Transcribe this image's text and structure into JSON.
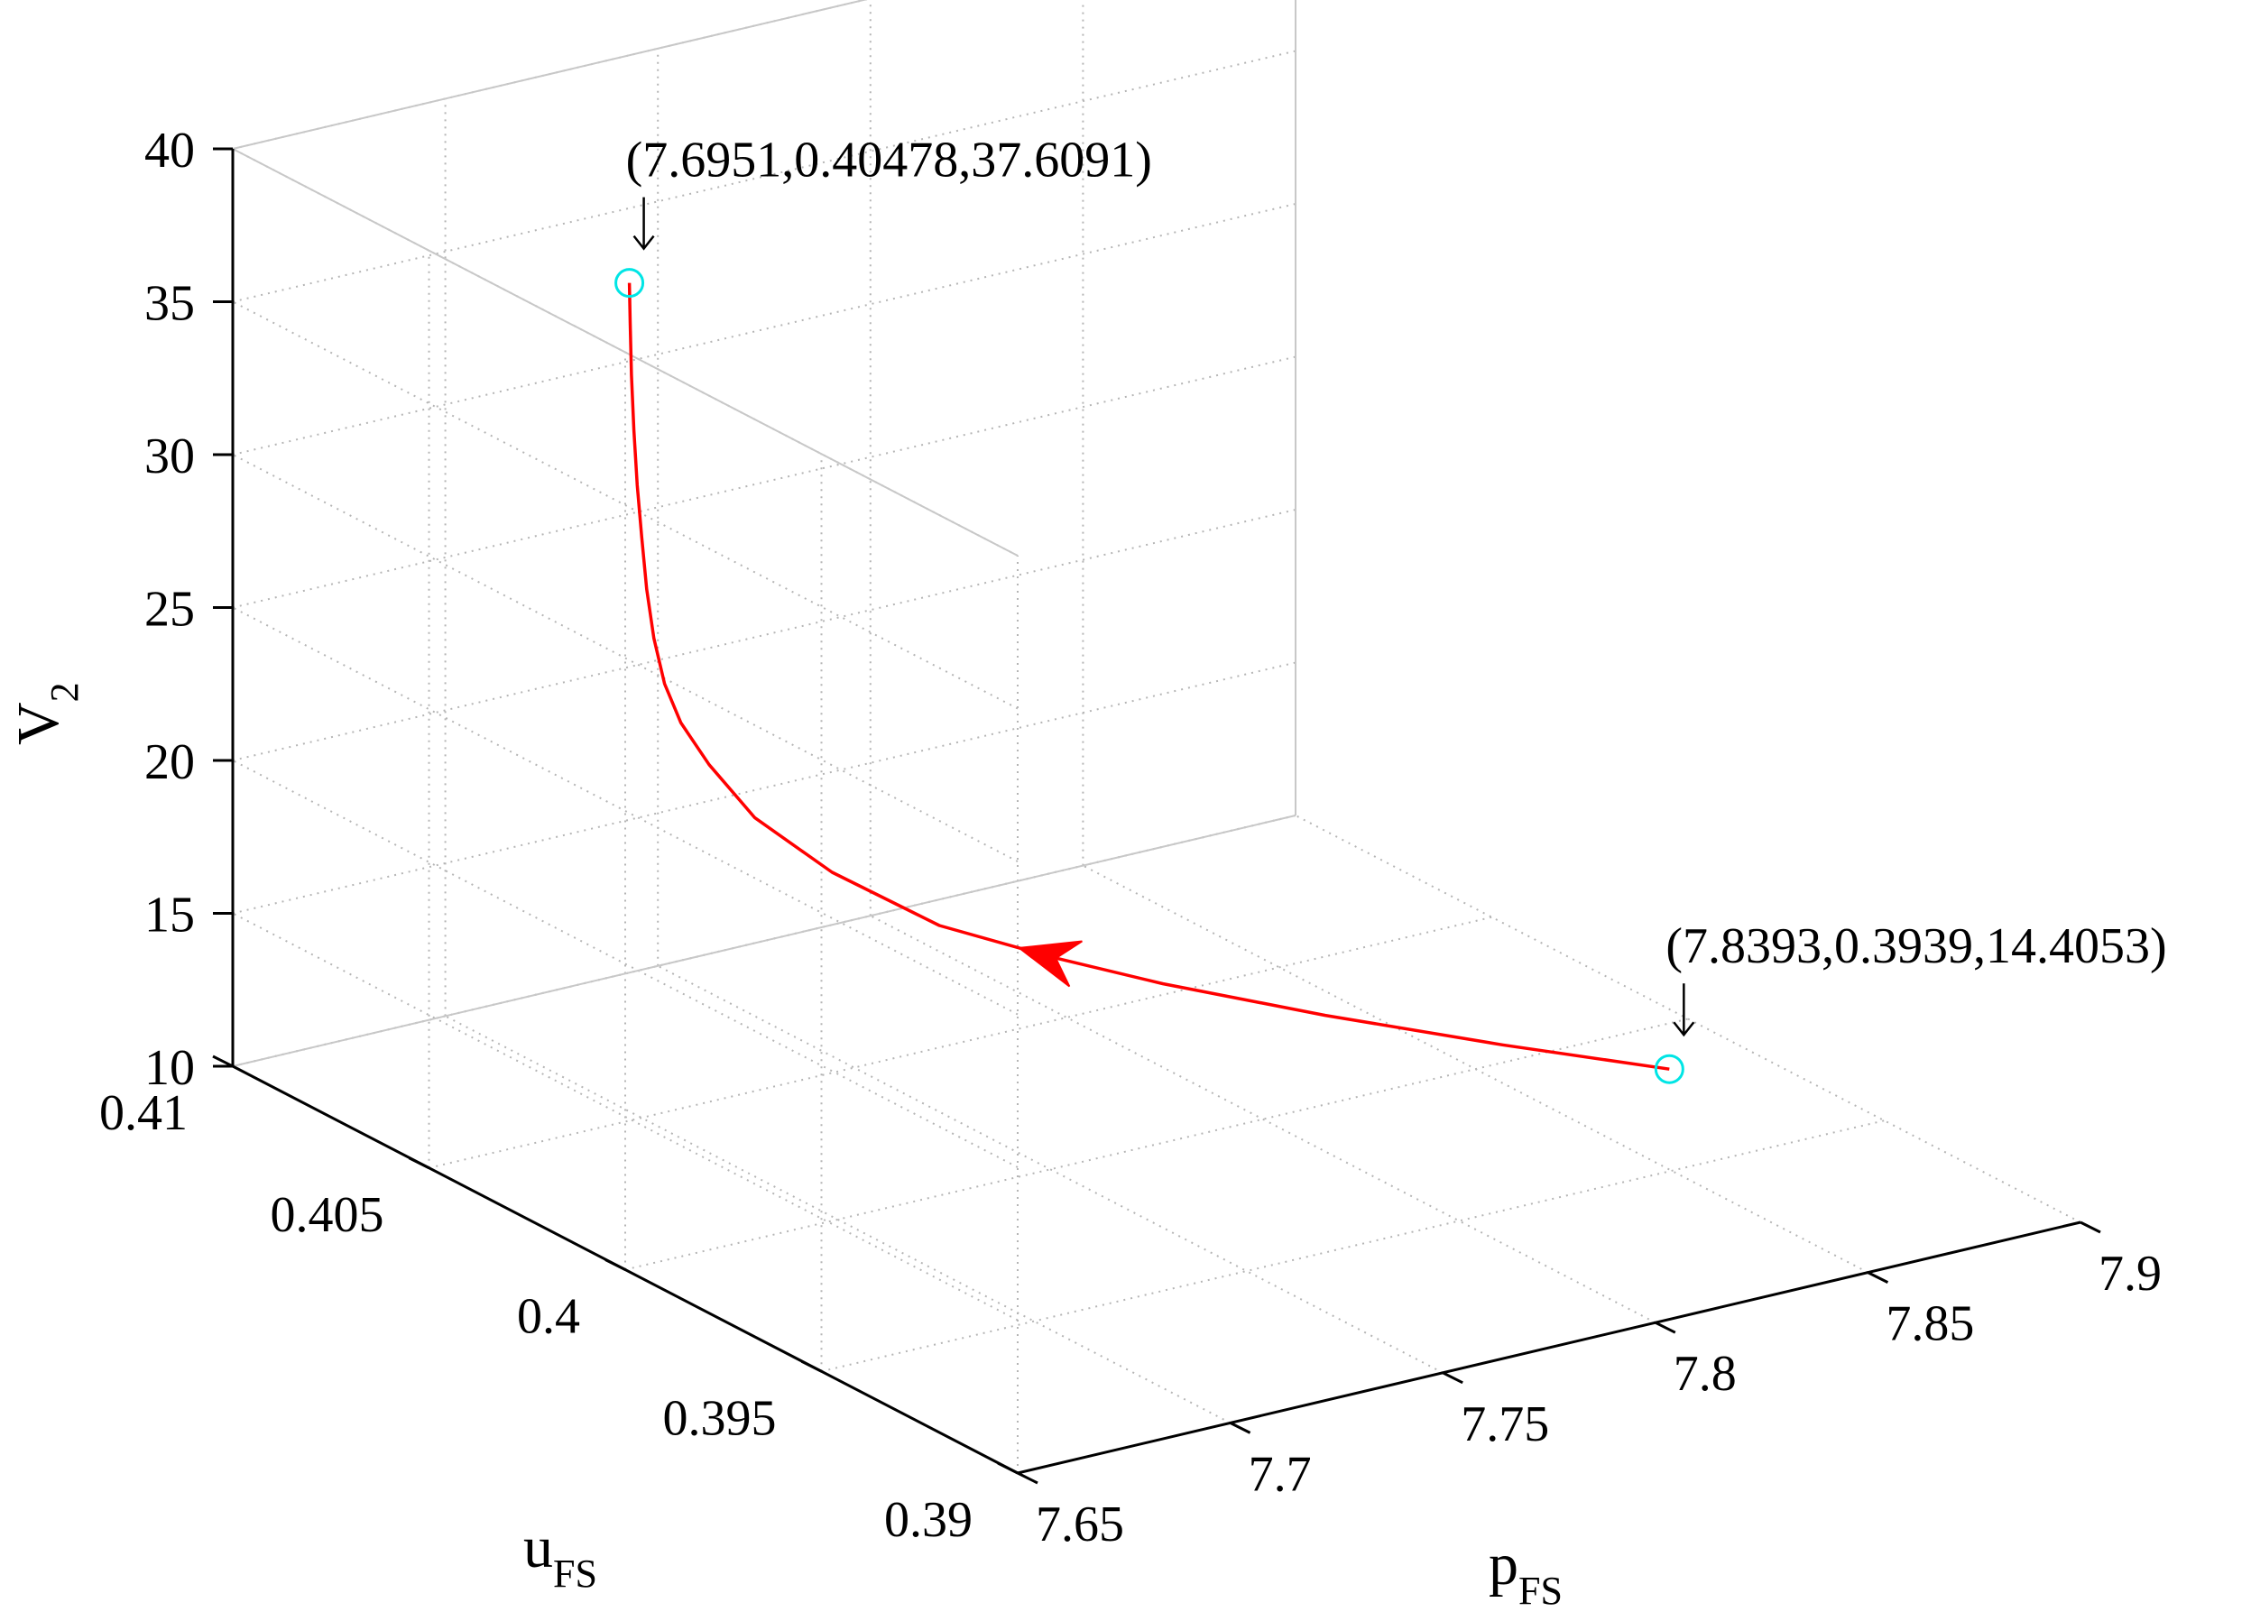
{
  "chart_data": {
    "type": "line",
    "chart_kind": "3d-line",
    "title": "",
    "xlabel": {
      "main": "p",
      "sub": "FS"
    },
    "ylabel": {
      "main": "u",
      "sub": "FS"
    },
    "zlabel": {
      "main": "V",
      "sub": "2"
    },
    "xlim": [
      7.65,
      7.9
    ],
    "ylim": [
      0.39,
      0.41
    ],
    "zlim": [
      10,
      40
    ],
    "xticks": [
      "7.65",
      "7.7",
      "7.75",
      "7.8",
      "7.85",
      "7.9"
    ],
    "yticks": [
      "0.39",
      "0.395",
      "0.4",
      "0.405",
      "0.41"
    ],
    "zticks": [
      "10",
      "15",
      "20",
      "25",
      "30",
      "35",
      "40"
    ],
    "grid": true,
    "line_color": "#ff0000",
    "marker_color": "#00e5e5",
    "series": [
      {
        "x": [
          7.8393,
          7.8185,
          7.7962,
          7.7755,
          7.76,
          7.7442,
          7.7282,
          7.7165,
          7.7085,
          7.7037,
          7.7008,
          7.699,
          7.6978,
          7.697,
          7.6963,
          7.6958,
          7.6954,
          7.6952,
          7.6951
        ],
        "y": [
          0.3939,
          0.3959,
          0.398,
          0.3999,
          0.4011,
          0.4022,
          0.4032,
          0.4039,
          0.4042,
          0.4044,
          0.4045,
          0.40458,
          0.40463,
          0.40467,
          0.40471,
          0.40474,
          0.40476,
          0.40477,
          0.40478
        ],
        "z": [
          14.4053,
          14.55,
          14.85,
          15.3,
          15.9,
          16.7,
          18.3,
          20.0,
          21.8,
          23.2,
          24.5,
          26.0,
          27.6,
          29.3,
          31.0,
          32.8,
          34.6,
          36.3,
          37.6091
        ]
      }
    ],
    "annotations": [
      {
        "text": "(7.6951,0.40478,37.6091)",
        "x": 7.6951,
        "y": 0.40478,
        "z": 37.6091
      },
      {
        "text": "(7.8393,0.3939,14.4053)",
        "x": 7.8393,
        "y": 0.3939,
        "z": 14.4053
      }
    ]
  }
}
